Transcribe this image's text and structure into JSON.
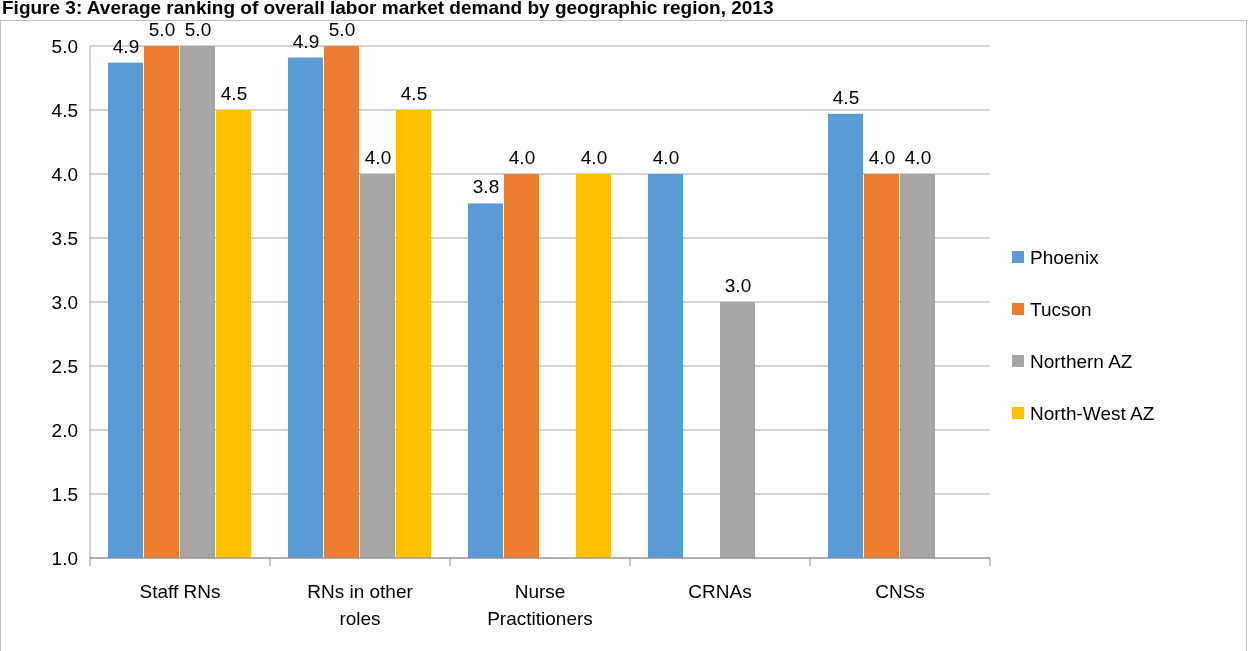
{
  "chart_data": {
    "type": "bar",
    "title": "Figure 3: Average ranking of overall labor market demand by geographic region, 2013",
    "categories": [
      "Staff RNs",
      "RNs in other roles",
      "Nurse Practitioners",
      "CRNAs",
      "CNSs"
    ],
    "series": [
      {
        "name": "Phoenix",
        "color": "#5b9bd5",
        "values": [
          4.87,
          4.91,
          3.77,
          4.0,
          4.47
        ],
        "value_labels": [
          "4.9",
          "4.9",
          "3.8",
          "4.0",
          "4.5"
        ]
      },
      {
        "name": "Tucson",
        "color": "#ed7d31",
        "values": [
          5.0,
          5.0,
          4.0,
          null,
          4.0
        ],
        "value_labels": [
          "5.0",
          "5.0",
          "4.0",
          null,
          "4.0"
        ]
      },
      {
        "name": "Northern AZ",
        "color": "#a5a5a5",
        "values": [
          5.0,
          4.0,
          null,
          3.0,
          4.0
        ],
        "value_labels": [
          "5.0",
          "4.0",
          null,
          "3.0",
          "4.0"
        ]
      },
      {
        "name": "North-West AZ",
        "color": "#ffc000",
        "values": [
          4.5,
          4.5,
          4.0,
          null,
          null
        ],
        "value_labels": [
          "4.5",
          "4.5",
          "4.0",
          null,
          null
        ]
      }
    ],
    "ylim": [
      1,
      5
    ],
    "yticks": [
      {
        "value": 1,
        "label": "1.0"
      },
      {
        "value": 1.5,
        "label": "1.5"
      },
      {
        "value": 2,
        "label": "2.0"
      },
      {
        "value": 2.5,
        "label": "2.5"
      },
      {
        "value": 3,
        "label": "3.0"
      },
      {
        "value": 3.5,
        "label": "3.5"
      },
      {
        "value": 4,
        "label": "4.0"
      },
      {
        "value": 4.5,
        "label": "4.5"
      },
      {
        "value": 5,
        "label": "5.0"
      }
    ],
    "grid": "y",
    "legend": "right"
  }
}
